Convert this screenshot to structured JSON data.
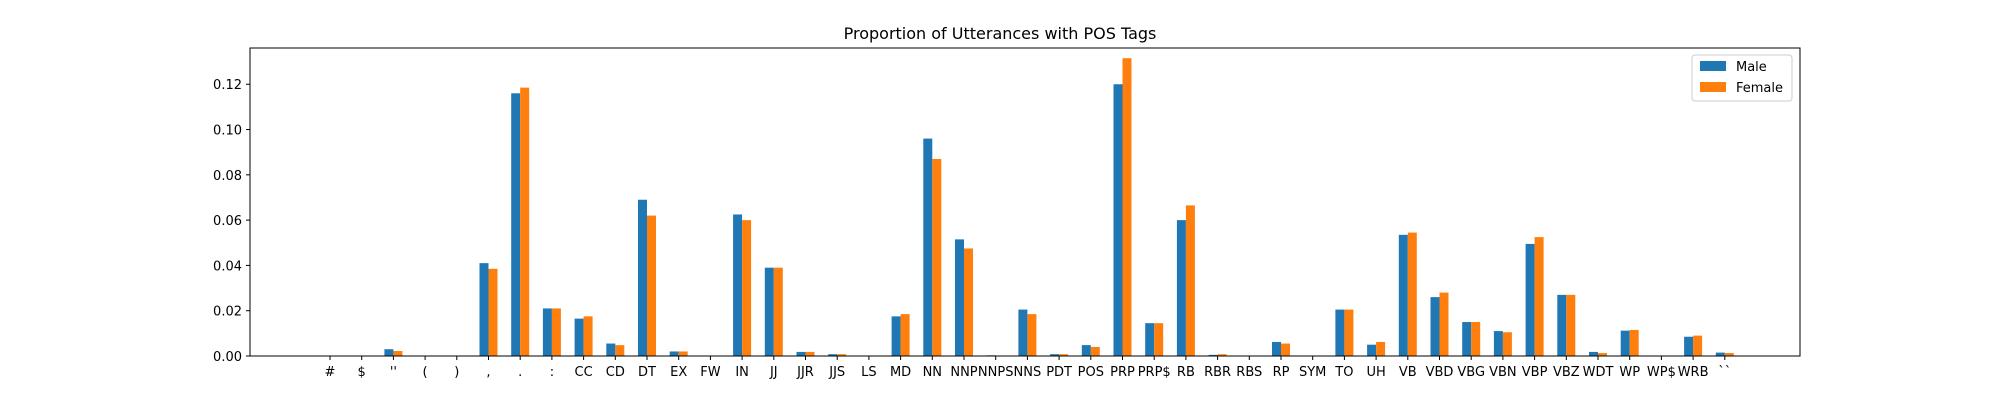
{
  "chart_data": {
    "type": "bar",
    "title": "Proportion of Utterances with POS Tags",
    "xlabel": "",
    "ylabel": "",
    "ylim": [
      0,
      0.136
    ],
    "yticks": [
      "0.00",
      "0.02",
      "0.04",
      "0.06",
      "0.08",
      "0.10",
      "0.12"
    ],
    "legend_position": "top-right",
    "grid": false,
    "categories": [
      "#",
      "$",
      "''",
      "(",
      ")",
      ",",
      ".",
      ":",
      "CC",
      "CD",
      "DT",
      "EX",
      "FW",
      "IN",
      "JJ",
      "JJR",
      "JJS",
      "LS",
      "MD",
      "NN",
      "NNP",
      "NNPS",
      "NNS",
      "PDT",
      "POS",
      "PRP",
      "PRP$",
      "RB",
      "RBR",
      "RBS",
      "RP",
      "SYM",
      "TO",
      "UH",
      "VB",
      "VBD",
      "VBG",
      "VBN",
      "VBP",
      "VBZ",
      "WDT",
      "WP",
      "WP$",
      "WRB",
      "``"
    ],
    "series": [
      {
        "name": "Male",
        "color": "#1f77b4",
        "values": [
          0,
          0,
          0.003,
          0,
          0,
          0.041,
          0.116,
          0.021,
          0.0165,
          0.0055,
          0.069,
          0.002,
          0,
          0.0625,
          0.039,
          0.0018,
          0.0008,
          0,
          0.0175,
          0.096,
          0.0515,
          0.0003,
          0.0205,
          0.0008,
          0.0048,
          0.12,
          0.0145,
          0.06,
          0.0005,
          0,
          0.0062,
          0,
          0.0205,
          0.005,
          0.0535,
          0.026,
          0.015,
          0.011,
          0.0495,
          0.027,
          0.0018,
          0.0112,
          0,
          0.0085,
          0.0015
        ]
      },
      {
        "name": "Female",
        "color": "#ff7f0e",
        "values": [
          0,
          0,
          0.0022,
          0,
          0,
          0.0385,
          0.1185,
          0.021,
          0.0175,
          0.0048,
          0.062,
          0.002,
          0,
          0.06,
          0.039,
          0.0018,
          0.0008,
          0,
          0.0185,
          0.087,
          0.0475,
          0.0002,
          0.0185,
          0.0008,
          0.004,
          0.1315,
          0.0145,
          0.0665,
          0.0008,
          0,
          0.0055,
          0,
          0.0205,
          0.0062,
          0.0545,
          0.028,
          0.015,
          0.0105,
          0.0525,
          0.027,
          0.0013,
          0.0115,
          0,
          0.009,
          0.0013
        ]
      }
    ]
  }
}
